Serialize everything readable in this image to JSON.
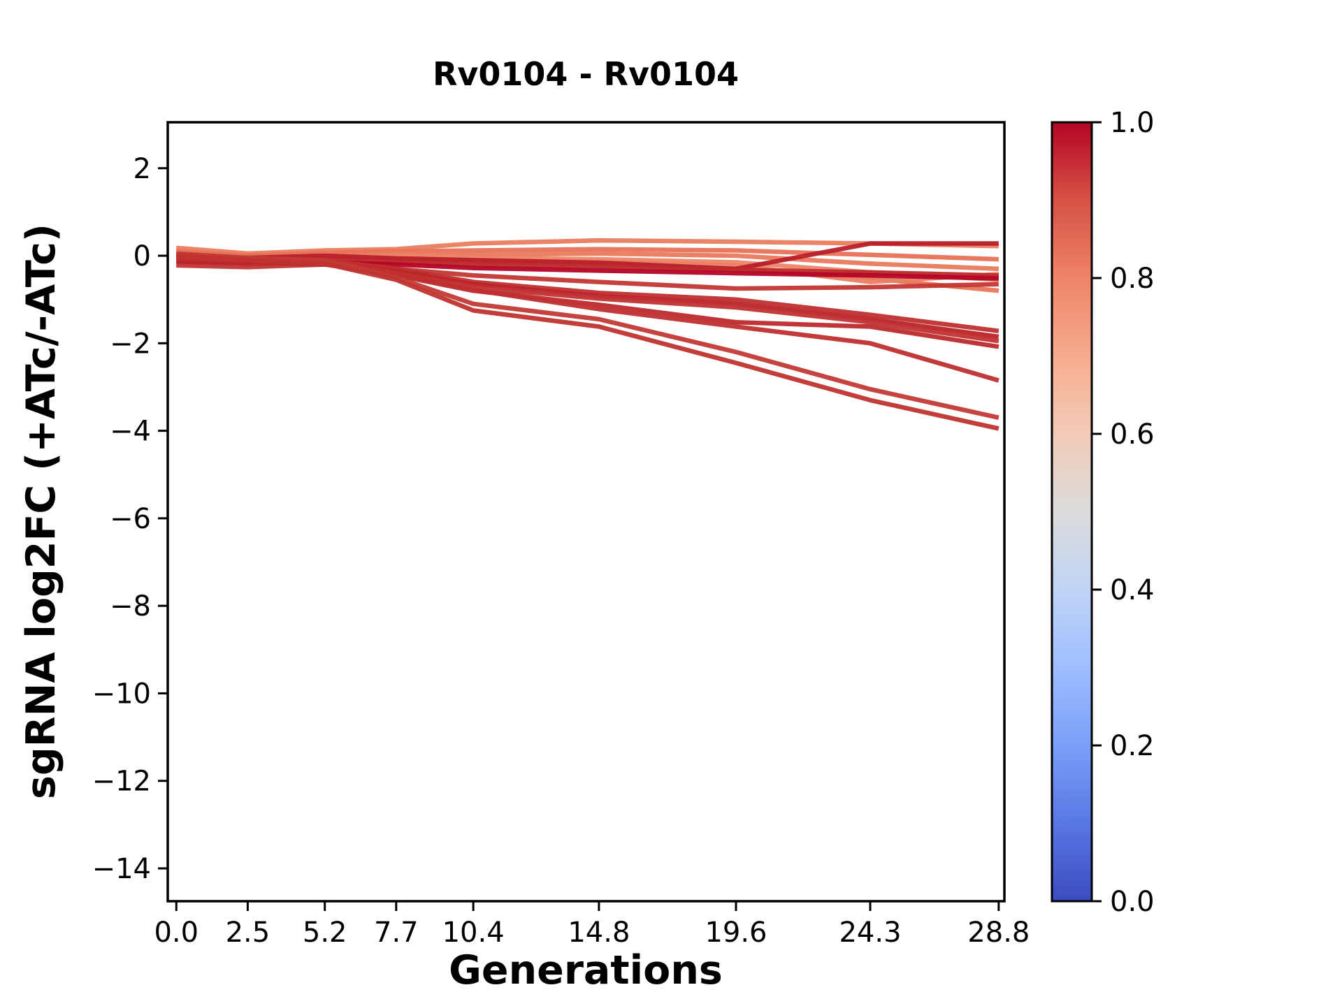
{
  "figure": {
    "title": "Rv0104 - Rv0104",
    "xlabel": "Generations",
    "ylabel": "sgRNA log2FC (+ATc/-ATc)",
    "background_color": "#ffffff",
    "axis_color": "#000000"
  },
  "chart_data": {
    "type": "line",
    "title": "Rv0104 - Rv0104",
    "xlabel": "Generations",
    "ylabel": "sgRNA log2FC (+ATc/-ATc)",
    "grid": false,
    "legend": "none (colorbar encodes line value)",
    "x": [
      0.0,
      2.5,
      5.2,
      7.7,
      10.4,
      14.8,
      19.6,
      24.3,
      28.8
    ],
    "x_tick_labels": [
      "0.0",
      "2.5",
      "5.2",
      "7.7",
      "10.4",
      "14.8",
      "19.6",
      "24.3",
      "28.8"
    ],
    "y_tick_values": [
      2,
      0,
      -2,
      -4,
      -6,
      -8,
      -10,
      -12,
      -14
    ],
    "y_tick_labels": [
      "2",
      "0",
      "−2",
      "−4",
      "−6",
      "−8",
      "−10",
      "−12",
      "−14"
    ],
    "xlim": [
      -0.3,
      29.0
    ],
    "ylim": [
      -14.75,
      3.05
    ],
    "series": [
      {
        "cmap_value": 0.75,
        "color": "#ea7d5f",
        "values": [
          0.18,
          0.05,
          0.12,
          0.15,
          0.28,
          0.35,
          0.32,
          0.28,
          0.22
        ]
      },
      {
        "cmap_value": 0.78,
        "color": "#e77257",
        "values": [
          0.1,
          0.0,
          0.06,
          0.1,
          0.12,
          0.15,
          0.12,
          0.02,
          -0.08
        ]
      },
      {
        "cmap_value": 0.76,
        "color": "#e97a5d",
        "values": [
          0.05,
          -0.06,
          0.0,
          0.05,
          0.02,
          0.05,
          0.0,
          -0.18,
          -0.3
        ]
      },
      {
        "cmap_value": 0.74,
        "color": "#ec8467",
        "values": [
          0.0,
          -0.1,
          -0.04,
          0.0,
          -0.05,
          -0.08,
          -0.15,
          -0.38,
          -0.55
        ]
      },
      {
        "cmap_value": 0.77,
        "color": "#e87659",
        "values": [
          -0.1,
          -0.16,
          -0.1,
          -0.12,
          -0.15,
          -0.2,
          -0.3,
          -0.52,
          -0.8
        ]
      },
      {
        "cmap_value": 0.75,
        "color": "#ea8064",
        "values": [
          -0.05,
          -0.12,
          -0.06,
          -0.06,
          -0.1,
          -0.14,
          -0.22,
          -0.6,
          -0.42
        ]
      },
      {
        "cmap_value": 0.97,
        "color": "#b81f2a",
        "values": [
          0.02,
          -0.05,
          0.0,
          -0.06,
          -0.1,
          -0.16,
          -0.3,
          0.28,
          0.28
        ]
      },
      {
        "cmap_value": 0.95,
        "color": "#bd2b2d",
        "values": [
          -0.08,
          -0.14,
          -0.1,
          -0.15,
          -0.2,
          -0.25,
          -0.32,
          -0.38,
          -0.45
        ]
      },
      {
        "cmap_value": 1.0,
        "color": "#b40426",
        "values": [
          -0.15,
          -0.2,
          -0.15,
          -0.2,
          -0.28,
          -0.34,
          -0.4,
          -0.45,
          -0.52
        ]
      },
      {
        "cmap_value": 0.92,
        "color": "#c23734",
        "values": [
          -0.22,
          -0.26,
          -0.2,
          -0.3,
          -0.45,
          -0.6,
          -0.75,
          -0.72,
          -0.65
        ]
      },
      {
        "cmap_value": 0.94,
        "color": "#c02f30",
        "values": [
          0.0,
          -0.08,
          -0.1,
          -0.3,
          -0.6,
          -0.85,
          -1.0,
          -1.35,
          -1.72
        ]
      },
      {
        "cmap_value": 0.96,
        "color": "#bb2429",
        "values": [
          -0.05,
          -0.1,
          -0.15,
          -0.35,
          -0.65,
          -0.92,
          -1.1,
          -1.45,
          -1.85
        ]
      },
      {
        "cmap_value": 0.93,
        "color": "#c13331",
        "values": [
          0.0,
          -0.05,
          -0.12,
          -0.4,
          -0.72,
          -0.98,
          -1.18,
          -1.52,
          -1.95
        ]
      },
      {
        "cmap_value": 0.95,
        "color": "#bd2b2d",
        "values": [
          -0.1,
          -0.15,
          -0.2,
          -0.45,
          -0.8,
          -1.12,
          -1.52,
          -1.62,
          -2.08
        ]
      },
      {
        "cmap_value": 0.94,
        "color": "#c02f30",
        "values": [
          -0.05,
          -0.1,
          -0.16,
          -0.42,
          -0.78,
          -1.22,
          -1.62,
          -2.0,
          -2.85
        ]
      },
      {
        "cmap_value": 0.93,
        "color": "#c33a35",
        "values": [
          0.05,
          -0.05,
          -0.1,
          -0.5,
          -1.1,
          -1.45,
          -2.2,
          -3.05,
          -3.7
        ]
      },
      {
        "cmap_value": 0.95,
        "color": "#c0332f",
        "values": [
          0.0,
          -0.1,
          -0.18,
          -0.55,
          -1.25,
          -1.62,
          -2.45,
          -3.3,
          -3.95
        ]
      }
    ],
    "colorbar": {
      "cmap_name": "coolwarm",
      "range": [
        0.0,
        1.0
      ],
      "tick_labels": [
        "1.0",
        "0.8",
        "0.6",
        "0.4",
        "0.2",
        "0.0"
      ],
      "tick_values": [
        1.0,
        0.8,
        0.6,
        0.4,
        0.2,
        0.0
      ],
      "gradient_stops": [
        {
          "pos": 0.0,
          "color": "#3b4cc0"
        },
        {
          "pos": 0.1,
          "color": "#5977e3"
        },
        {
          "pos": 0.2,
          "color": "#7b9ff9"
        },
        {
          "pos": 0.3,
          "color": "#9ebeff"
        },
        {
          "pos": 0.4,
          "color": "#c0d4f5"
        },
        {
          "pos": 0.5,
          "color": "#dcdcdc"
        },
        {
          "pos": 0.6,
          "color": "#f2cbb7"
        },
        {
          "pos": 0.7,
          "color": "#f7ac8e"
        },
        {
          "pos": 0.8,
          "color": "#ee8468"
        },
        {
          "pos": 0.9,
          "color": "#d65244"
        },
        {
          "pos": 1.0,
          "color": "#b40426"
        }
      ]
    }
  }
}
